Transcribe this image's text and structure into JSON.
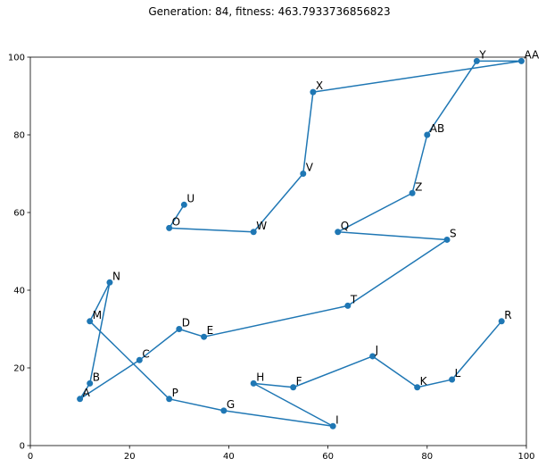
{
  "chart_data": {
    "type": "line",
    "title": "Generation: 84, fitness: 463.7933736856823",
    "xlabel": "",
    "ylabel": "",
    "xlim": [
      0,
      100
    ],
    "ylim": [
      0,
      100
    ],
    "x_ticks": [
      0,
      20,
      40,
      60,
      80,
      100
    ],
    "y_ticks": [
      0,
      20,
      40,
      60,
      80,
      100
    ],
    "grid": false,
    "line_color": "#1f77b4",
    "series": [
      {
        "points": [
          {
            "label": "U",
            "x": 31,
            "y": 62
          },
          {
            "label": "O",
            "x": 28,
            "y": 56
          },
          {
            "label": "W",
            "x": 45,
            "y": 55
          },
          {
            "label": "V",
            "x": 55,
            "y": 70
          },
          {
            "label": "X",
            "x": 57,
            "y": 91
          },
          {
            "label": "AA",
            "x": 99,
            "y": 99
          },
          {
            "label": "Y",
            "x": 90,
            "y": 99
          },
          {
            "label": "AB",
            "x": 80,
            "y": 80
          },
          {
            "label": "Z",
            "x": 77,
            "y": 65
          },
          {
            "label": "Q",
            "x": 62,
            "y": 55
          },
          {
            "label": "S",
            "x": 84,
            "y": 53
          },
          {
            "label": "T",
            "x": 64,
            "y": 36
          },
          {
            "label": "E",
            "x": 35,
            "y": 28
          },
          {
            "label": "D",
            "x": 30,
            "y": 30
          },
          {
            "label": "C",
            "x": 22,
            "y": 22
          },
          {
            "label": "A",
            "x": 10,
            "y": 12
          },
          {
            "label": "B",
            "x": 12,
            "y": 16
          },
          {
            "label": "N",
            "x": 16,
            "y": 42
          },
          {
            "label": "M",
            "x": 12,
            "y": 32
          },
          {
            "label": "P",
            "x": 28,
            "y": 12
          },
          {
            "label": "G",
            "x": 39,
            "y": 9
          },
          {
            "label": "I",
            "x": 61,
            "y": 5
          },
          {
            "label": "H",
            "x": 45,
            "y": 16
          },
          {
            "label": "F",
            "x": 53,
            "y": 15
          },
          {
            "label": "J",
            "x": 69,
            "y": 23
          },
          {
            "label": "K",
            "x": 78,
            "y": 15
          },
          {
            "label": "L",
            "x": 85,
            "y": 17
          },
          {
            "label": "R",
            "x": 95,
            "y": 32
          }
        ]
      }
    ]
  }
}
